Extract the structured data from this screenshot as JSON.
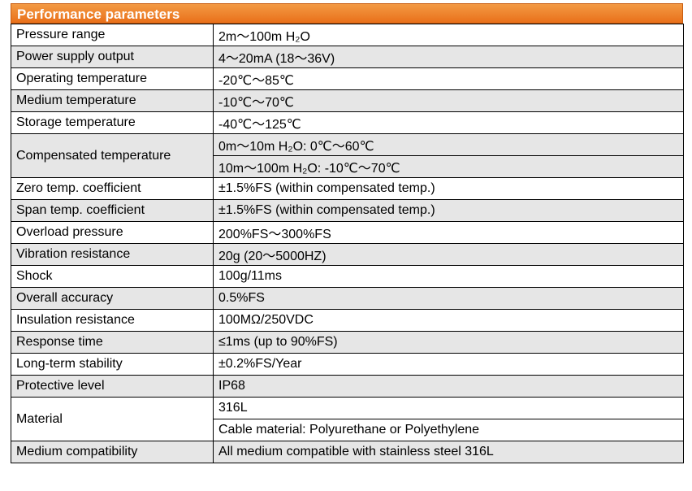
{
  "title": "Performance parameters",
  "rows": [
    {
      "param": "Pressure range",
      "values": [
        "2m～100m H₂O"
      ]
    },
    {
      "param": "Power supply output",
      "values": [
        "4～20mA (18～36V)"
      ]
    },
    {
      "param": "Operating temperature",
      "values": [
        "-20℃～85℃"
      ]
    },
    {
      "param": "Medium temperature",
      "values": [
        "-10℃～70℃"
      ]
    },
    {
      "param": "Storage temperature",
      "values": [
        "-40℃～125℃"
      ]
    },
    {
      "param": "Compensated temperature",
      "values": [
        "0m～10m H₂O: 0℃～60℃",
        "10m～100m H₂O: -10℃～70℃"
      ]
    },
    {
      "param": "Zero temp. coefficient",
      "values": [
        "±1.5%FS (within compensated temp.)"
      ]
    },
    {
      "param": "Span temp. coefficient",
      "values": [
        "±1.5%FS (within compensated temp.)"
      ]
    },
    {
      "param": "Overload pressure",
      "values": [
        "200%FS～300%FS"
      ]
    },
    {
      "param": "Vibration resistance",
      "values": [
        "20g (20～5000HZ)"
      ]
    },
    {
      "param": "Shock",
      "values": [
        "100g/11ms"
      ]
    },
    {
      "param": "Overall accuracy",
      "values": [
        "0.5%FS"
      ]
    },
    {
      "param": "Insulation resistance",
      "values": [
        "100MΩ/250VDC"
      ]
    },
    {
      "param": "Response time",
      "values": [
        "≤1ms (up to 90%FS)"
      ]
    },
    {
      "param": "Long-term stability",
      "values": [
        "±0.2%FS/Year"
      ]
    },
    {
      "param": "Protective level",
      "values": [
        "IP68"
      ]
    },
    {
      "param": "Material",
      "values": [
        "316L",
        "Cable material: Polyurethane or Polyethylene"
      ]
    },
    {
      "param": "Medium compatibility",
      "values": [
        "All medium compatible with stainless steel 316L"
      ]
    }
  ]
}
